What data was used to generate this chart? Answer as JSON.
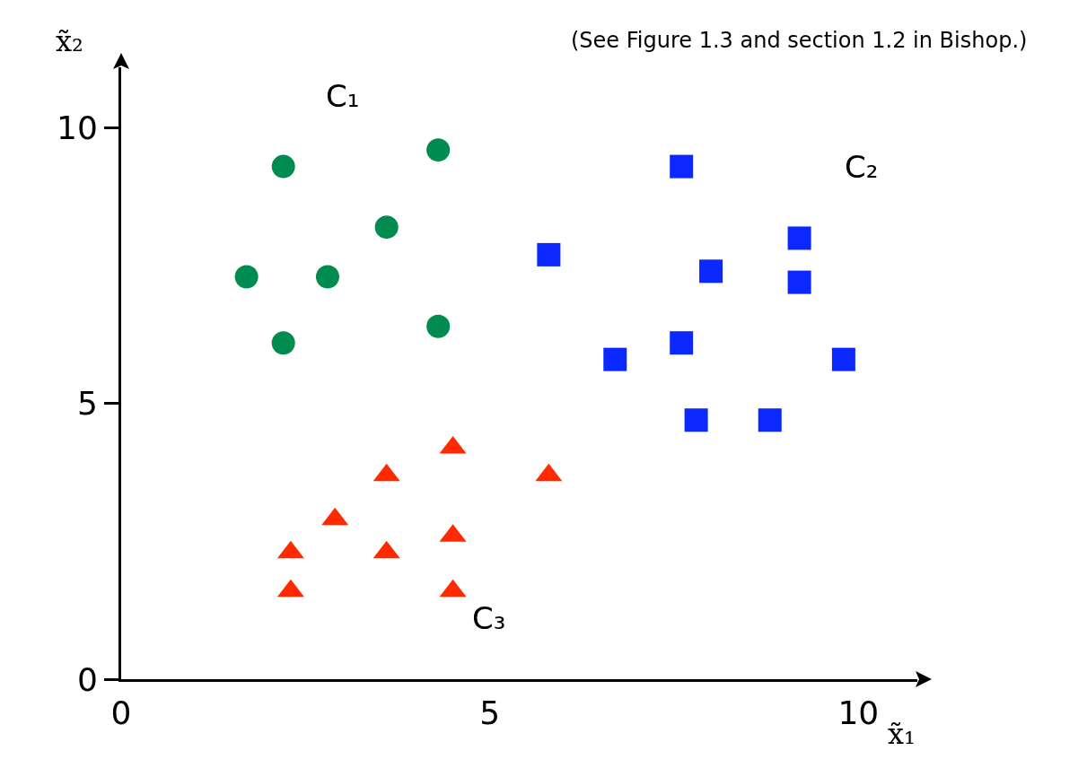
{
  "chart_data": {
    "type": "scatter",
    "xlabel": "x̃₁",
    "ylabel": "x̃₂",
    "annotations": [
      "(See Figure 1.3 and section 1.2 in Bishop.)"
    ],
    "series": [
      {
        "name": "C₁",
        "color": "#008c50",
        "marker": "circle",
        "x": [
          2.2,
          4.3,
          3.6,
          1.7,
          2.8,
          2.2,
          4.3
        ],
        "values": [
          9.3,
          9.6,
          8.2,
          7.3,
          7.3,
          6.1,
          6.4
        ]
      },
      {
        "name": "C₂",
        "color": "#0a28ff",
        "marker": "square",
        "x": [
          7.6,
          5.8,
          9.2,
          8.0,
          9.2,
          6.7,
          7.6,
          9.8,
          7.8,
          8.8
        ],
        "values": [
          9.3,
          7.7,
          8.0,
          7.4,
          7.2,
          5.8,
          6.1,
          5.8,
          4.7,
          4.7
        ]
      },
      {
        "name": "C₃",
        "color": "#ff2a00",
        "marker": "triangle",
        "x": [
          4.5,
          3.6,
          5.8,
          2.9,
          2.3,
          3.6,
          4.5,
          2.3,
          4.5
        ],
        "values": [
          4.2,
          3.7,
          3.7,
          2.9,
          2.3,
          2.3,
          2.6,
          1.6,
          1.6
        ]
      }
    ],
    "xlim": [
      0,
      10.8
    ],
    "ylim": [
      0,
      11.1
    ],
    "xticks": [
      0,
      5,
      10
    ],
    "yticks": [
      0,
      5,
      10
    ],
    "grid": false,
    "legend": false
  }
}
